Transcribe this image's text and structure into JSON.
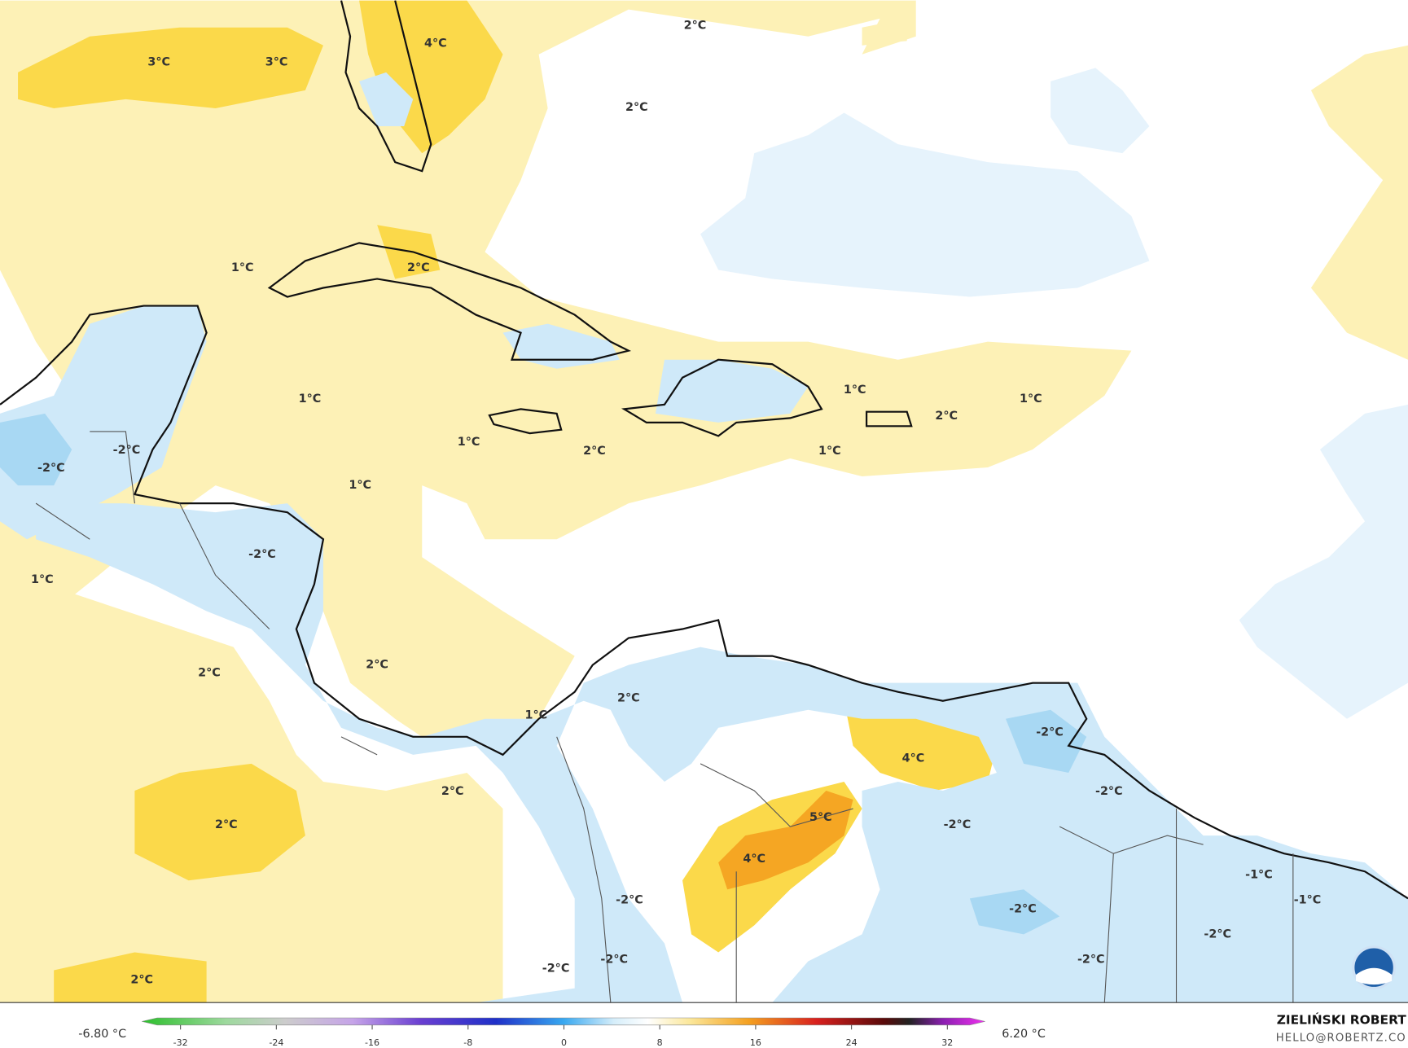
{
  "map": {
    "labels": [
      "3°C",
      "3°C",
      "4°C",
      "2°C",
      "2°C",
      "1°C",
      "2°C",
      "1°C",
      "-2°C",
      "-2°C",
      "1°C",
      "2°C",
      "1°C",
      "2°C",
      "1°C",
      "1°C",
      "1°C",
      "-2°C",
      "1°C",
      "2°C",
      "2°C",
      "1°C",
      "2°C",
      "-2°C",
      "4°C",
      "2°C",
      "-2°C",
      "5°C",
      "-2°C",
      "2°C",
      "4°C",
      "-1°C",
      "-2°C",
      "-1°C",
      "-2°C",
      "-2°C",
      "-2°C",
      "-2°C",
      "-2°C",
      "2°C"
    ],
    "colorbar": {
      "min_label": "-6.80 °C",
      "max_label": "6.20 °C",
      "ticks": [
        "-32",
        "-24",
        "-16",
        "-8",
        "0",
        "8",
        "16",
        "24",
        "32"
      ]
    },
    "credit": {
      "name": "ZIELIŃSKI ROBERT",
      "contact": "HELLO@ROBERTZ.CO"
    }
  }
}
